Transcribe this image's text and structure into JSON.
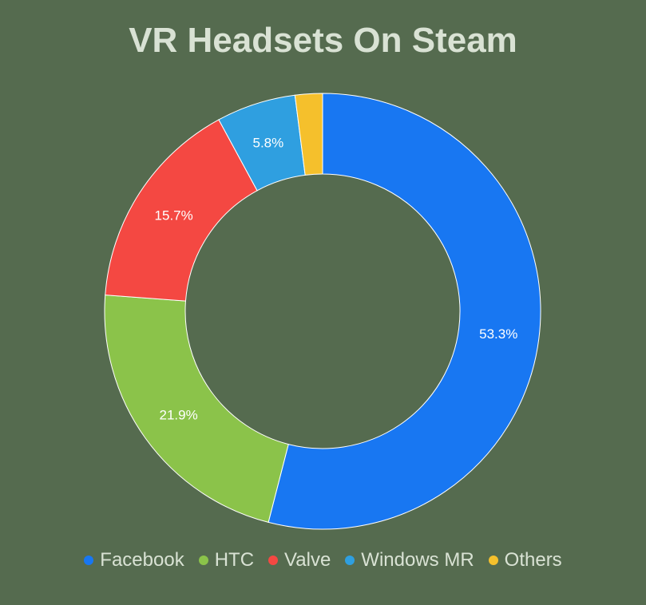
{
  "chart_data": {
    "type": "pie",
    "title": "VR Headsets On Steam",
    "categories": [
      "Facebook",
      "HTC",
      "Valve",
      "Windows MR",
      "Others"
    ],
    "values": [
      53.3,
      21.9,
      15.7,
      5.8,
      2.0
    ],
    "value_labels": [
      "53.3%",
      "21.9%",
      "15.7%",
      "5.8%",
      ""
    ],
    "colors": [
      "#1877f2",
      "#8bc34a",
      "#f44842",
      "#2f9fe0",
      "#f5c02c"
    ],
    "donut": true,
    "legend_position": "bottom"
  }
}
